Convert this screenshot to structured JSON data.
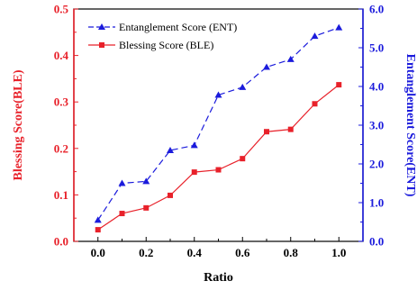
{
  "chart_data": {
    "type": "line",
    "x": [
      0.0,
      0.1,
      0.2,
      0.3,
      0.4,
      0.5,
      0.6,
      0.7,
      0.8,
      0.9,
      1.0
    ],
    "xlabel": "Ratio",
    "xlim": [
      -0.1,
      1.1
    ],
    "xticks": [
      "0.0",
      "0.2",
      "0.4",
      "0.6",
      "0.8",
      "1.0"
    ],
    "y_left": {
      "label": "Blessing Score(BLE)",
      "ylim": [
        0.0,
        0.5
      ],
      "ticks": [
        "0.0",
        "0.1",
        "0.2",
        "0.3",
        "0.4",
        "0.5"
      ],
      "color": "#e8212a"
    },
    "y_right": {
      "label": "Entanglement Score(ENT)",
      "ylim": [
        0.0,
        6.0
      ],
      "ticks": [
        "0.0",
        "1.0",
        "2.0",
        "3.0",
        "4.0",
        "5.0",
        "6.0"
      ],
      "color": "#1b1bdc"
    },
    "series": [
      {
        "name": "Entanglement Score (ENT)",
        "axis": "right",
        "style": "dashed",
        "marker": "triangle",
        "color": "#1b1bdc",
        "values": [
          0.55,
          1.5,
          1.55,
          2.35,
          2.48,
          3.78,
          3.98,
          4.5,
          4.7,
          5.3,
          5.52
        ]
      },
      {
        "name": "Blessing Score (BLE)",
        "axis": "left",
        "style": "solid",
        "marker": "square",
        "color": "#e8212a",
        "values": [
          0.025,
          0.06,
          0.072,
          0.099,
          0.149,
          0.154,
          0.178,
          0.236,
          0.241,
          0.296,
          0.337
        ]
      }
    ],
    "legend": "top-left",
    "grid": false
  }
}
